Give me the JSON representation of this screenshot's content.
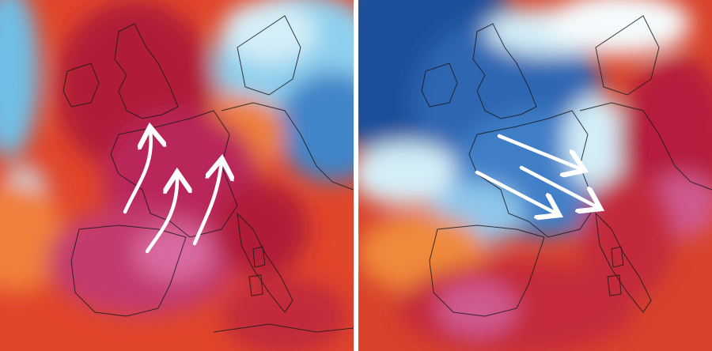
{
  "panels": [
    {
      "id": "left",
      "theme": "heat",
      "colors": {
        "background": "#e0462a",
        "hot": "#b01e38",
        "hotter": "#c23a6e",
        "extreme": "#d96aa0",
        "warm": "#f0803a",
        "cool_light": "#bfe6f2",
        "cool": "#6fbfe6",
        "cold": "#2f6fb8"
      },
      "arrows": {
        "count": 3,
        "direction": "northward",
        "color": "#ffffff"
      }
    },
    {
      "id": "right",
      "theme": "cool-outbreak",
      "colors": {
        "background": "#d8432b",
        "cold_dark": "#1f4f9a",
        "cold": "#3f7fc8",
        "cool": "#8fc6ea",
        "cool_light": "#d4eef8",
        "hot": "#b51f3c",
        "extreme": "#cf5a90"
      },
      "arrows": {
        "count": 3,
        "direction": "southeastward",
        "color": "#ffffff"
      }
    }
  ]
}
